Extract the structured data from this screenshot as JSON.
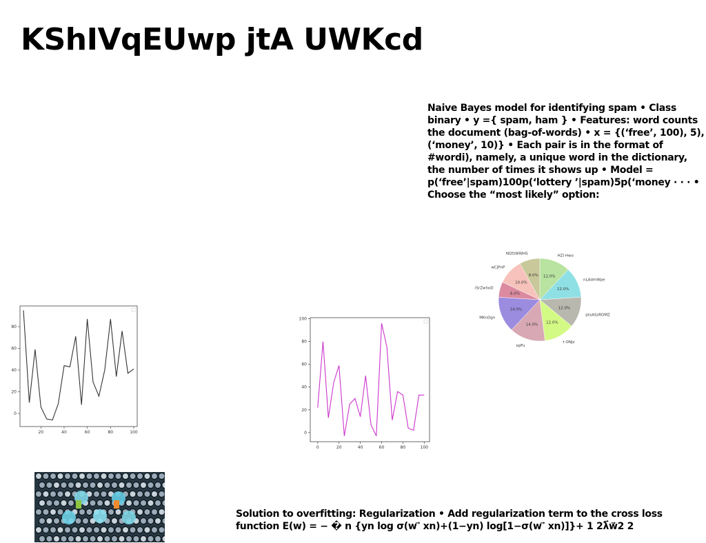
{
  "slide": {
    "title": "KShIVqEUwp jtA UWKcd",
    "body_text": "Naive Bayes model for identifying spam • Class binary • y ={ spam, ham } • Features: word counts the document (bag-of-words) • x = {(‘free’, 100), 5), (‘money’, 10)} • Each pair is in the format of #wordi), namely, a unique word in the dictionary, the number of times it shows up • Model = p(‘free’|spam)100p(‘lottery ’|spam)5p(‘money · · · • Choose the “most likely” option:",
    "footer_text": "Solution to overfitting: Regularization • Add regularization term to the cross loss function E(w) = − � n {yn log σ(w ⃗ xn)+(1−yn) log[1−σ(w ⃗ xn)]}+ 1 2λ⃗w⃗2 2"
  },
  "chart_data": [
    {
      "type": "line",
      "x": [
        5,
        10,
        15,
        20,
        25,
        30,
        35,
        40,
        45,
        50,
        55,
        60,
        65,
        70,
        75,
        80,
        85,
        90,
        95,
        100
      ],
      "series": [
        {
          "values": [
            95,
            10,
            59,
            6,
            -5,
            -6,
            9,
            44,
            43,
            71,
            8,
            87,
            29,
            16,
            40,
            87,
            34,
            76,
            37,
            41
          ]
        }
      ],
      "xticks": [
        "20",
        "40",
        "60",
        "80",
        "100"
      ],
      "yticks": [
        "0",
        "20",
        "40",
        "60",
        "80"
      ],
      "xlim": [
        2,
        103
      ],
      "ylim": [
        -12,
        99
      ],
      "color": "#333333"
    },
    {
      "type": "line",
      "x": [
        0,
        5,
        10,
        15,
        20,
        25,
        30,
        35,
        40,
        45,
        50,
        55,
        60,
        65,
        70,
        75,
        80,
        85,
        90,
        95,
        100
      ],
      "series": [
        {
          "values": [
            22,
            80,
            13,
            44,
            59,
            -3,
            25,
            30,
            14,
            50,
            7,
            -3,
            96,
            75,
            11,
            36,
            33,
            4,
            2,
            33,
            33
          ]
        }
      ],
      "xticks": [
        "0",
        "20",
        "40",
        "60",
        "80",
        "100"
      ],
      "yticks": [
        "0",
        "20",
        "40",
        "60",
        "80",
        "100"
      ],
      "xlim": [
        -7,
        105
      ],
      "ylim": [
        -8,
        101
      ],
      "color": "#cc33cc"
    },
    {
      "type": "pie",
      "slices": [
        {
          "label": "HZI Hwo",
          "value": 12.0,
          "text": "12.0%",
          "color": "#b8e3a0"
        },
        {
          "label": "nLAdmWpe",
          "value": 12.0,
          "text": "12.0%",
          "color": "#8fe0e4"
        },
        {
          "label": "ptxASzROMZ",
          "value": 12.0,
          "text": "12.0%",
          "color": "#b8b8ae"
        },
        {
          "label": "t ONJz",
          "value": 12.0,
          "text": "12.0%",
          "color": "#d4fa86"
        },
        {
          "label": "xpFu",
          "value": 14.0,
          "text": "14.0%",
          "color": "#d8a9b4"
        },
        {
          "label": "MKnDgn",
          "value": 14.0,
          "text": "14.0%",
          "color": "#9c8ce0"
        },
        {
          "label": "lSrZwhoD",
          "value": 6.0,
          "text": "6.0%",
          "color": "#dc8aa0"
        },
        {
          "label": "wCJPnP",
          "value": 10.0,
          "text": "10.0%",
          "color": "#f6c2bb"
        },
        {
          "label": "NQfzWWHS",
          "value": 8.0,
          "text": "8.0%",
          "color": "#c8c89a"
        }
      ]
    }
  ]
}
